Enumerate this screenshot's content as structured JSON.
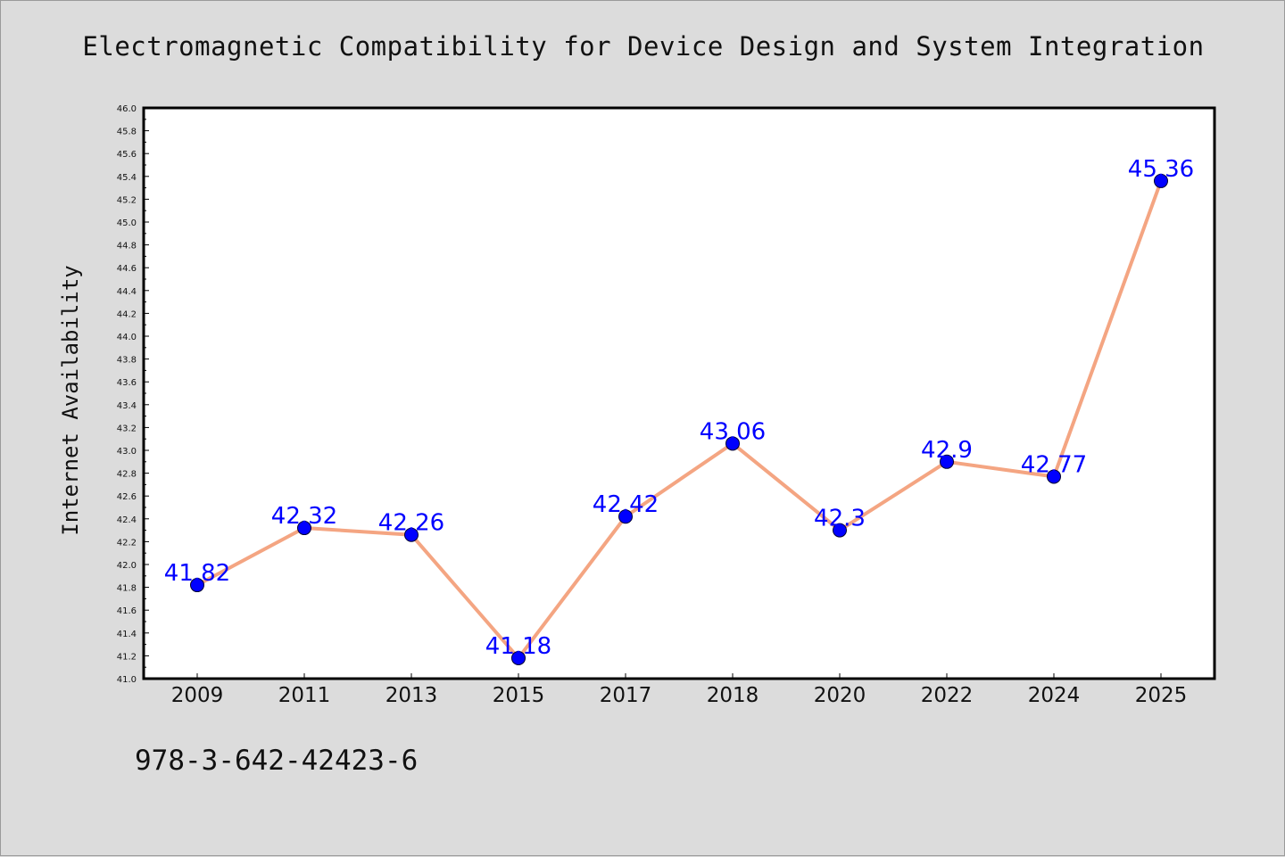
{
  "chart_data": {
    "type": "line",
    "title": "Electromagnetic Compatibility for Device Design and System Integration",
    "ylabel": "Internet Availability",
    "xlabel": "",
    "categories": [
      "2009",
      "2011",
      "2013",
      "2015",
      "2017",
      "2018",
      "2020",
      "2022",
      "2024",
      "2025"
    ],
    "values": [
      41.82,
      42.32,
      42.26,
      41.18,
      42.42,
      43.06,
      42.3,
      42.9,
      42.77,
      45.36
    ],
    "data_labels": [
      "41.82",
      "42.32",
      "42.26",
      "41.18",
      "42.42",
      "43.06",
      "42.3",
      "42.9",
      "42.77",
      "45.36"
    ],
    "ylim": [
      41.0,
      46.0
    ],
    "yticks": [
      "41.0",
      "41.2",
      "41.4",
      "41.6",
      "41.8",
      "42.0",
      "42.2",
      "42.4",
      "42.6",
      "42.8",
      "43.0",
      "43.2",
      "43.4",
      "43.6",
      "43.8",
      "44.0",
      "44.2",
      "44.4",
      "44.6",
      "44.8",
      "45.0",
      "45.2",
      "45.4",
      "45.6",
      "45.8",
      "46.0"
    ],
    "grid": false,
    "legend": "none",
    "line_color": "#f4a582",
    "marker_color": "#0000ff",
    "label_color": "#0000ff"
  },
  "footer": {
    "isbn": "978-3-642-42423-6"
  }
}
